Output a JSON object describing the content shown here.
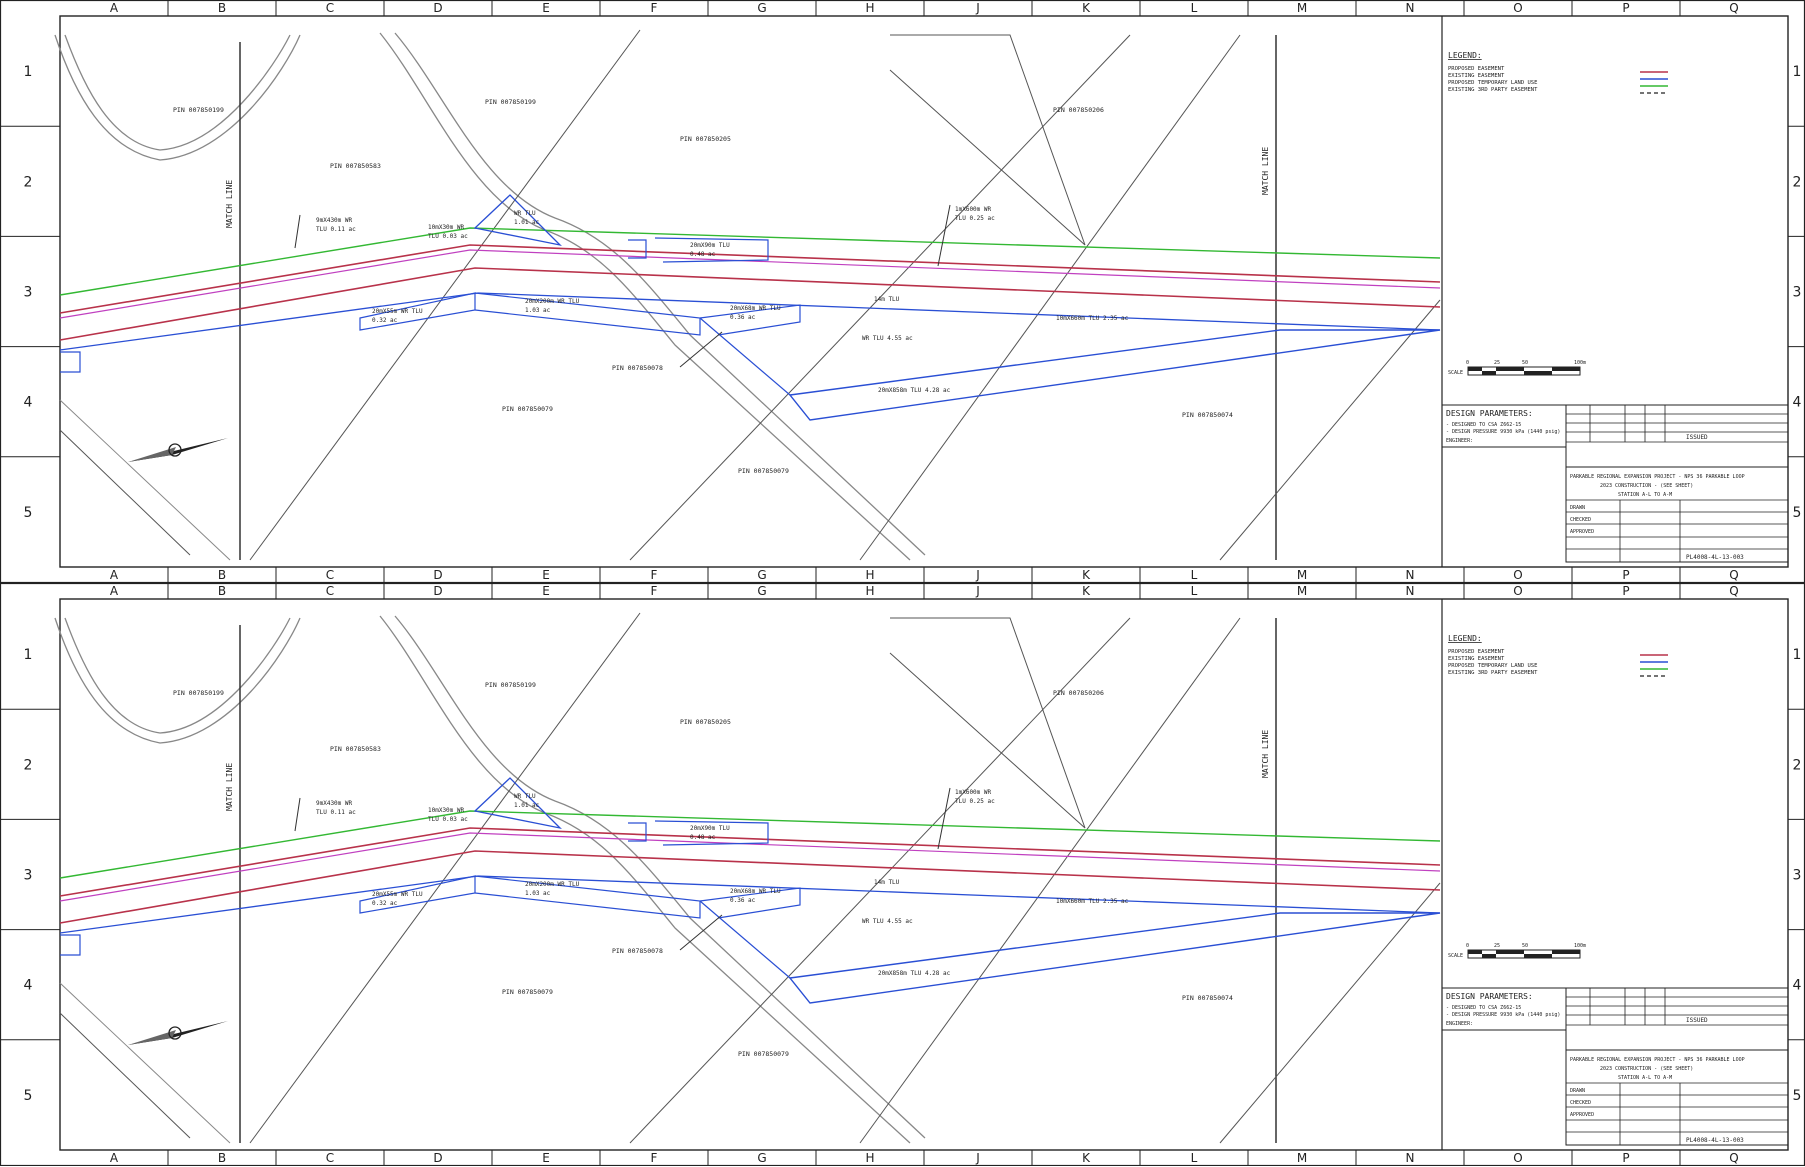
{
  "grid": {
    "columns": [
      "A",
      "B",
      "C",
      "D",
      "E",
      "F",
      "G",
      "H",
      "J",
      "K",
      "L",
      "M",
      "N",
      "O",
      "P",
      "Q"
    ],
    "rows": [
      "1",
      "2",
      "3",
      "4",
      "5"
    ]
  },
  "colors": {
    "proposed_easement": "#b8324a",
    "existing_easement": "#c040c0",
    "temporary_land_use": "#33b833",
    "boundary_blue": "#2a4fd4",
    "parcel_line": "#555555",
    "road_outline": "#888888"
  },
  "sheets": [
    {
      "parcels": {
        "p1": "PIN 007850199",
        "p2": "PIN 007850583",
        "p3": "PIN 007850199",
        "p4": "PIN 007850205",
        "p5": "PIN 007850206",
        "p6": "PIN 007850079",
        "p7": "PIN 007850078",
        "p8": "PIN 007850079",
        "p9": "PIN 007850074"
      },
      "match_line_left": "MATCH LINE",
      "match_line_right": "MATCH LINE",
      "callouts": {
        "c1a": "9mX430m WR",
        "c1b": "TLU 0.11 ac",
        "c2a": "10mX30m WR",
        "c2b": "TLU 0.03 ac",
        "c3a": "WR TLU",
        "c3b": "1.01 ac",
        "c4a": "20mX90m TLU",
        "c4b": "0.48 ac",
        "c5a": "1mX600m WR",
        "c5b": "TLU 0.25 ac",
        "c6a": "20mX55m WR TLU",
        "c6b": "0.32 ac",
        "c7a": "20mX200m WR TLU",
        "c7b": "1.03 ac",
        "c8a": "20mX68m WR TLU",
        "c8b": "0.36 ac",
        "c9": "14m TLU",
        "c10": "10mX660m TLU 2.35 ac",
        "c11": "WR TLU 4.55 ac",
        "c12": "20mX858m TLU 4.28 ac"
      },
      "legend": {
        "title": "LEGEND:",
        "items": [
          "PROPOSED EASEMENT",
          "EXISTING EASEMENT",
          "PROPOSED TEMPORARY LAND USE",
          "EXISTING 3RD PARTY EASEMENT"
        ]
      },
      "scale": {
        "start": "0",
        "mid1": "25",
        "mid2": "50",
        "end": "100m",
        "label": "SCALE"
      },
      "design_params": {
        "title": "DESIGN PARAMETERS:",
        "line1": "- DESIGNED TO CSA Z662-15",
        "line2": "- DESIGN PRESSURE 9930 kPa (1440 psig)",
        "line3": "ENGINEER:"
      },
      "title_block": {
        "project": "PARKABLE REGIONAL EXPANSION PROJECT - NPS 36 PARKABLE LOOP",
        "subtitle": "2023 CONSTRUCTION - (SEE SHEET)",
        "section": "STATION A-L TO A-M",
        "drawing_no": "PL4008-4L-13-003",
        "issued": "ISSUED",
        "drawn": "DRAWN",
        "checked": "CHECKED",
        "approved": "APPROVED"
      }
    },
    {
      "parcels": {
        "p1": "PIN 007850199",
        "p2": "PIN 007850583",
        "p3": "PIN 007850199",
        "p4": "PIN 007850205",
        "p5": "PIN 007850206",
        "p6": "PIN 007850079",
        "p7": "PIN 007850078",
        "p8": "PIN 007850079",
        "p9": "PIN 007850074"
      },
      "match_line_left": "MATCH LINE",
      "match_line_right": "MATCH LINE",
      "callouts": {
        "c1a": "9mX430m WR",
        "c1b": "TLU 0.11 ac",
        "c2a": "10mX30m WR",
        "c2b": "TLU 0.03 ac",
        "c3a": "WR TLU",
        "c3b": "1.01 ac",
        "c4a": "20mX90m TLU",
        "c4b": "0.48 ac",
        "c5a": "1mX600m WR",
        "c5b": "TLU 0.25 ac",
        "c6a": "20mX55m WR TLU",
        "c6b": "0.32 ac",
        "c7a": "20mX200m WR TLU",
        "c7b": "1.03 ac",
        "c8a": "20mX68m WR TLU",
        "c8b": "0.36 ac",
        "c9": "14m TLU",
        "c10": "10mX660m TLU 2.35 ac",
        "c11": "WR TLU 4.55 ac",
        "c12": "20mX858m TLU 4.28 ac"
      },
      "legend": {
        "title": "LEGEND:",
        "items": [
          "PROPOSED EASEMENT",
          "EXISTING EASEMENT",
          "PROPOSED TEMPORARY LAND USE",
          "EXISTING 3RD PARTY EASEMENT"
        ]
      },
      "scale": {
        "start": "0",
        "mid1": "25",
        "mid2": "50",
        "end": "100m",
        "label": "SCALE"
      },
      "design_params": {
        "title": "DESIGN PARAMETERS:",
        "line1": "- DESIGNED TO CSA Z662-15",
        "line2": "- DESIGN PRESSURE 9930 kPa (1440 psig)",
        "line3": "ENGINEER:"
      },
      "title_block": {
        "project": "PARKABLE REGIONAL EXPANSION PROJECT - NPS 36 PARKABLE LOOP",
        "subtitle": "2023 CONSTRUCTION - (SEE SHEET)",
        "section": "STATION A-L TO A-M",
        "drawing_no": "PL4008-4L-13-003",
        "issued": "ISSUED",
        "drawn": "DRAWN",
        "checked": "CHECKED",
        "approved": "APPROVED"
      }
    }
  ]
}
